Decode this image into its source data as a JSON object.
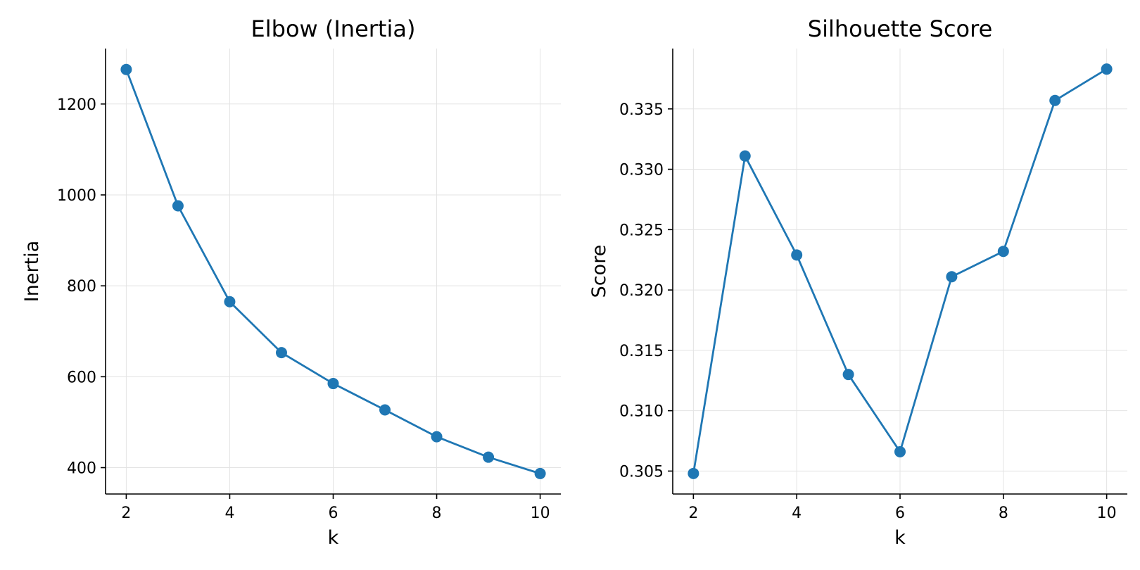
{
  "chart_data": [
    {
      "type": "line",
      "title": "Elbow (Inertia)",
      "xlabel": "k",
      "ylabel": "Inertia",
      "x": [
        2,
        3,
        4,
        5,
        6,
        7,
        8,
        9,
        10
      ],
      "series": [
        {
          "values": [
            1276,
            976,
            765,
            653,
            585,
            527,
            468,
            423,
            387
          ]
        }
      ],
      "xticks": [
        2,
        4,
        6,
        8,
        10
      ],
      "yticks": [
        400,
        600,
        800,
        1000,
        1200
      ],
      "xlim": [
        1.6,
        10.4
      ],
      "ylim": [
        342,
        1322
      ],
      "grid": true,
      "color": "#1f77b4"
    },
    {
      "type": "line",
      "title": "Silhouette Score",
      "xlabel": "k",
      "ylabel": "Score",
      "x": [
        2,
        3,
        4,
        5,
        6,
        7,
        8,
        9,
        10
      ],
      "series": [
        {
          "values": [
            0.3048,
            0.3311,
            0.3229,
            0.313,
            0.3066,
            0.3211,
            0.3232,
            0.3357,
            0.3383
          ]
        }
      ],
      "xticks": [
        2,
        4,
        6,
        8,
        10
      ],
      "yticks": [
        0.305,
        0.31,
        0.315,
        0.32,
        0.325,
        0.33,
        0.335
      ],
      "ytick_labels": [
        "0.305",
        "0.310",
        "0.315",
        "0.320",
        "0.325",
        "0.330",
        "0.335"
      ],
      "xlim": [
        1.6,
        10.4
      ],
      "ylim": [
        0.3031,
        0.34
      ],
      "grid": true,
      "color": "#1f77b4"
    }
  ]
}
